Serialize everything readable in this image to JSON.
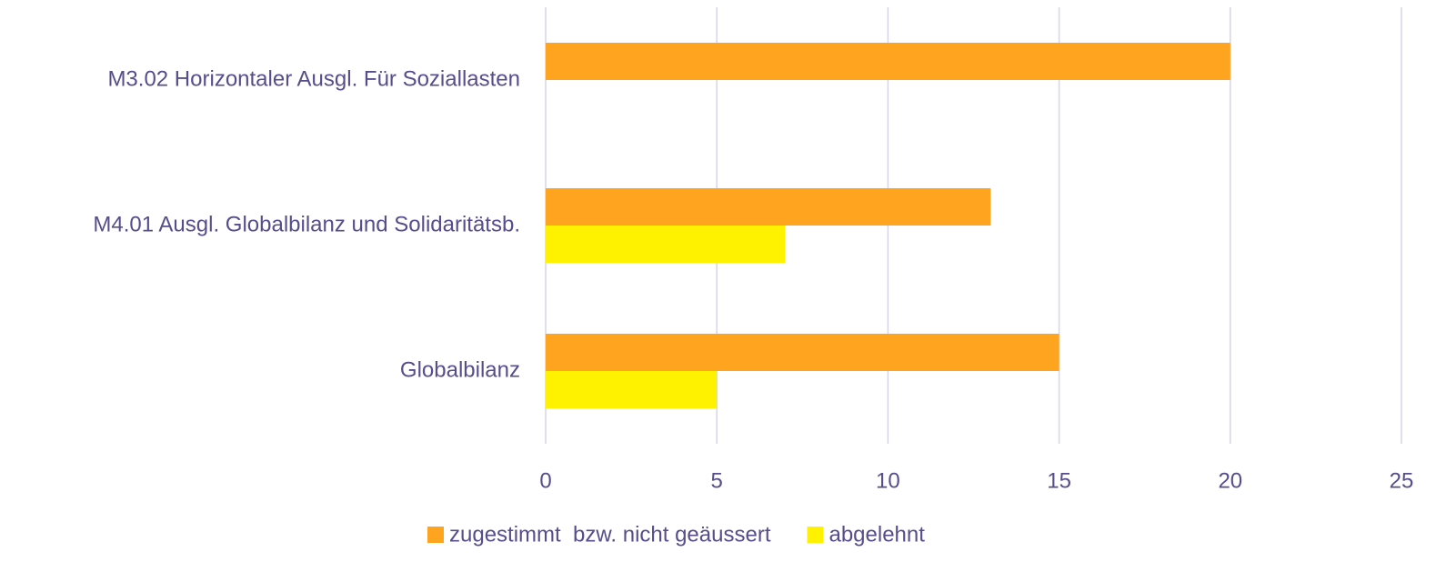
{
  "chart_data": {
    "type": "hbar",
    "categories": [
      "M3.02 Horizontaler Ausgl. Für Soziallasten",
      "M4.01 Ausgl. Globalbilanz und Solidaritätsb.",
      "Globalbilanz"
    ],
    "series": [
      {
        "name": "zugestimmt  bzw. nicht geäussert",
        "color": "#ffa41f",
        "values": [
          20,
          13,
          15
        ]
      },
      {
        "name": "abgelehnt",
        "color": "#fff200",
        "values": [
          0,
          7,
          5
        ]
      }
    ],
    "xlim": [
      0,
      25
    ],
    "xticks": [
      0,
      5,
      10,
      15,
      20,
      25
    ],
    "grid": true,
    "legend": "bottom"
  }
}
